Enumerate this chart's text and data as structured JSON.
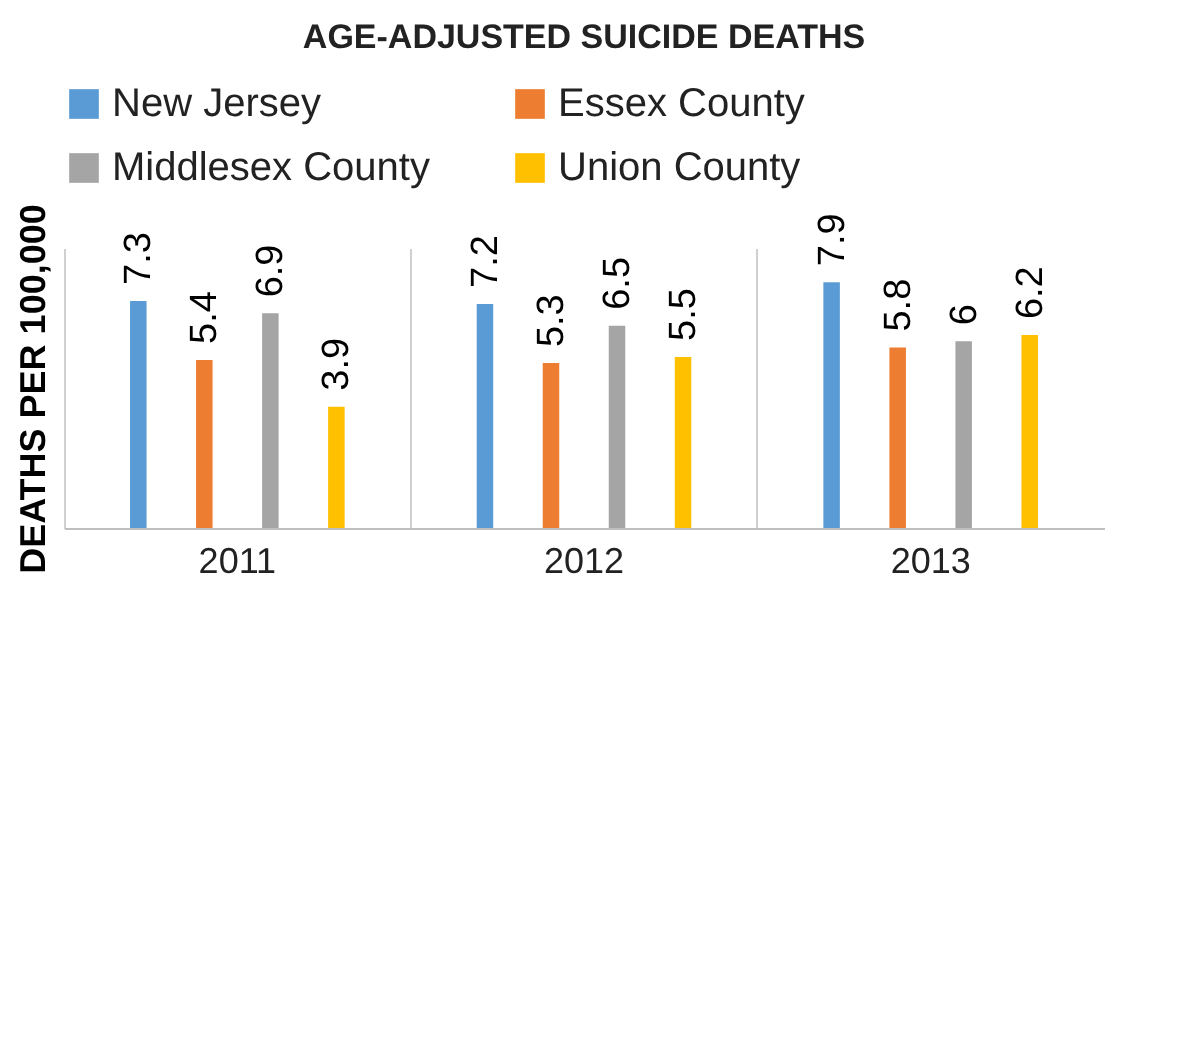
{
  "chart_data": {
    "type": "bar",
    "title": "AGE-ADJUSTED SUICIDE DEATHS",
    "ylabel": "DEATHS PER 100,000",
    "categories": [
      "2011",
      "2012",
      "2013"
    ],
    "series": [
      {
        "name": "New Jersey",
        "color": "#5b9bd5",
        "values": [
          7.3,
          7.2,
          7.9
        ]
      },
      {
        "name": "Essex County",
        "color": "#ed7d31",
        "values": [
          5.4,
          5.3,
          5.8
        ]
      },
      {
        "name": "Middlesex County",
        "color": "#a5a5a5",
        "values": [
          6.9,
          6.5,
          6
        ]
      },
      {
        "name": "Union County",
        "color": "#ffc000",
        "values": [
          3.9,
          5.5,
          6.2
        ]
      }
    ],
    "ylim": [
      0,
      9
    ],
    "data_labels": true,
    "grid": "x",
    "legend": "top"
  }
}
